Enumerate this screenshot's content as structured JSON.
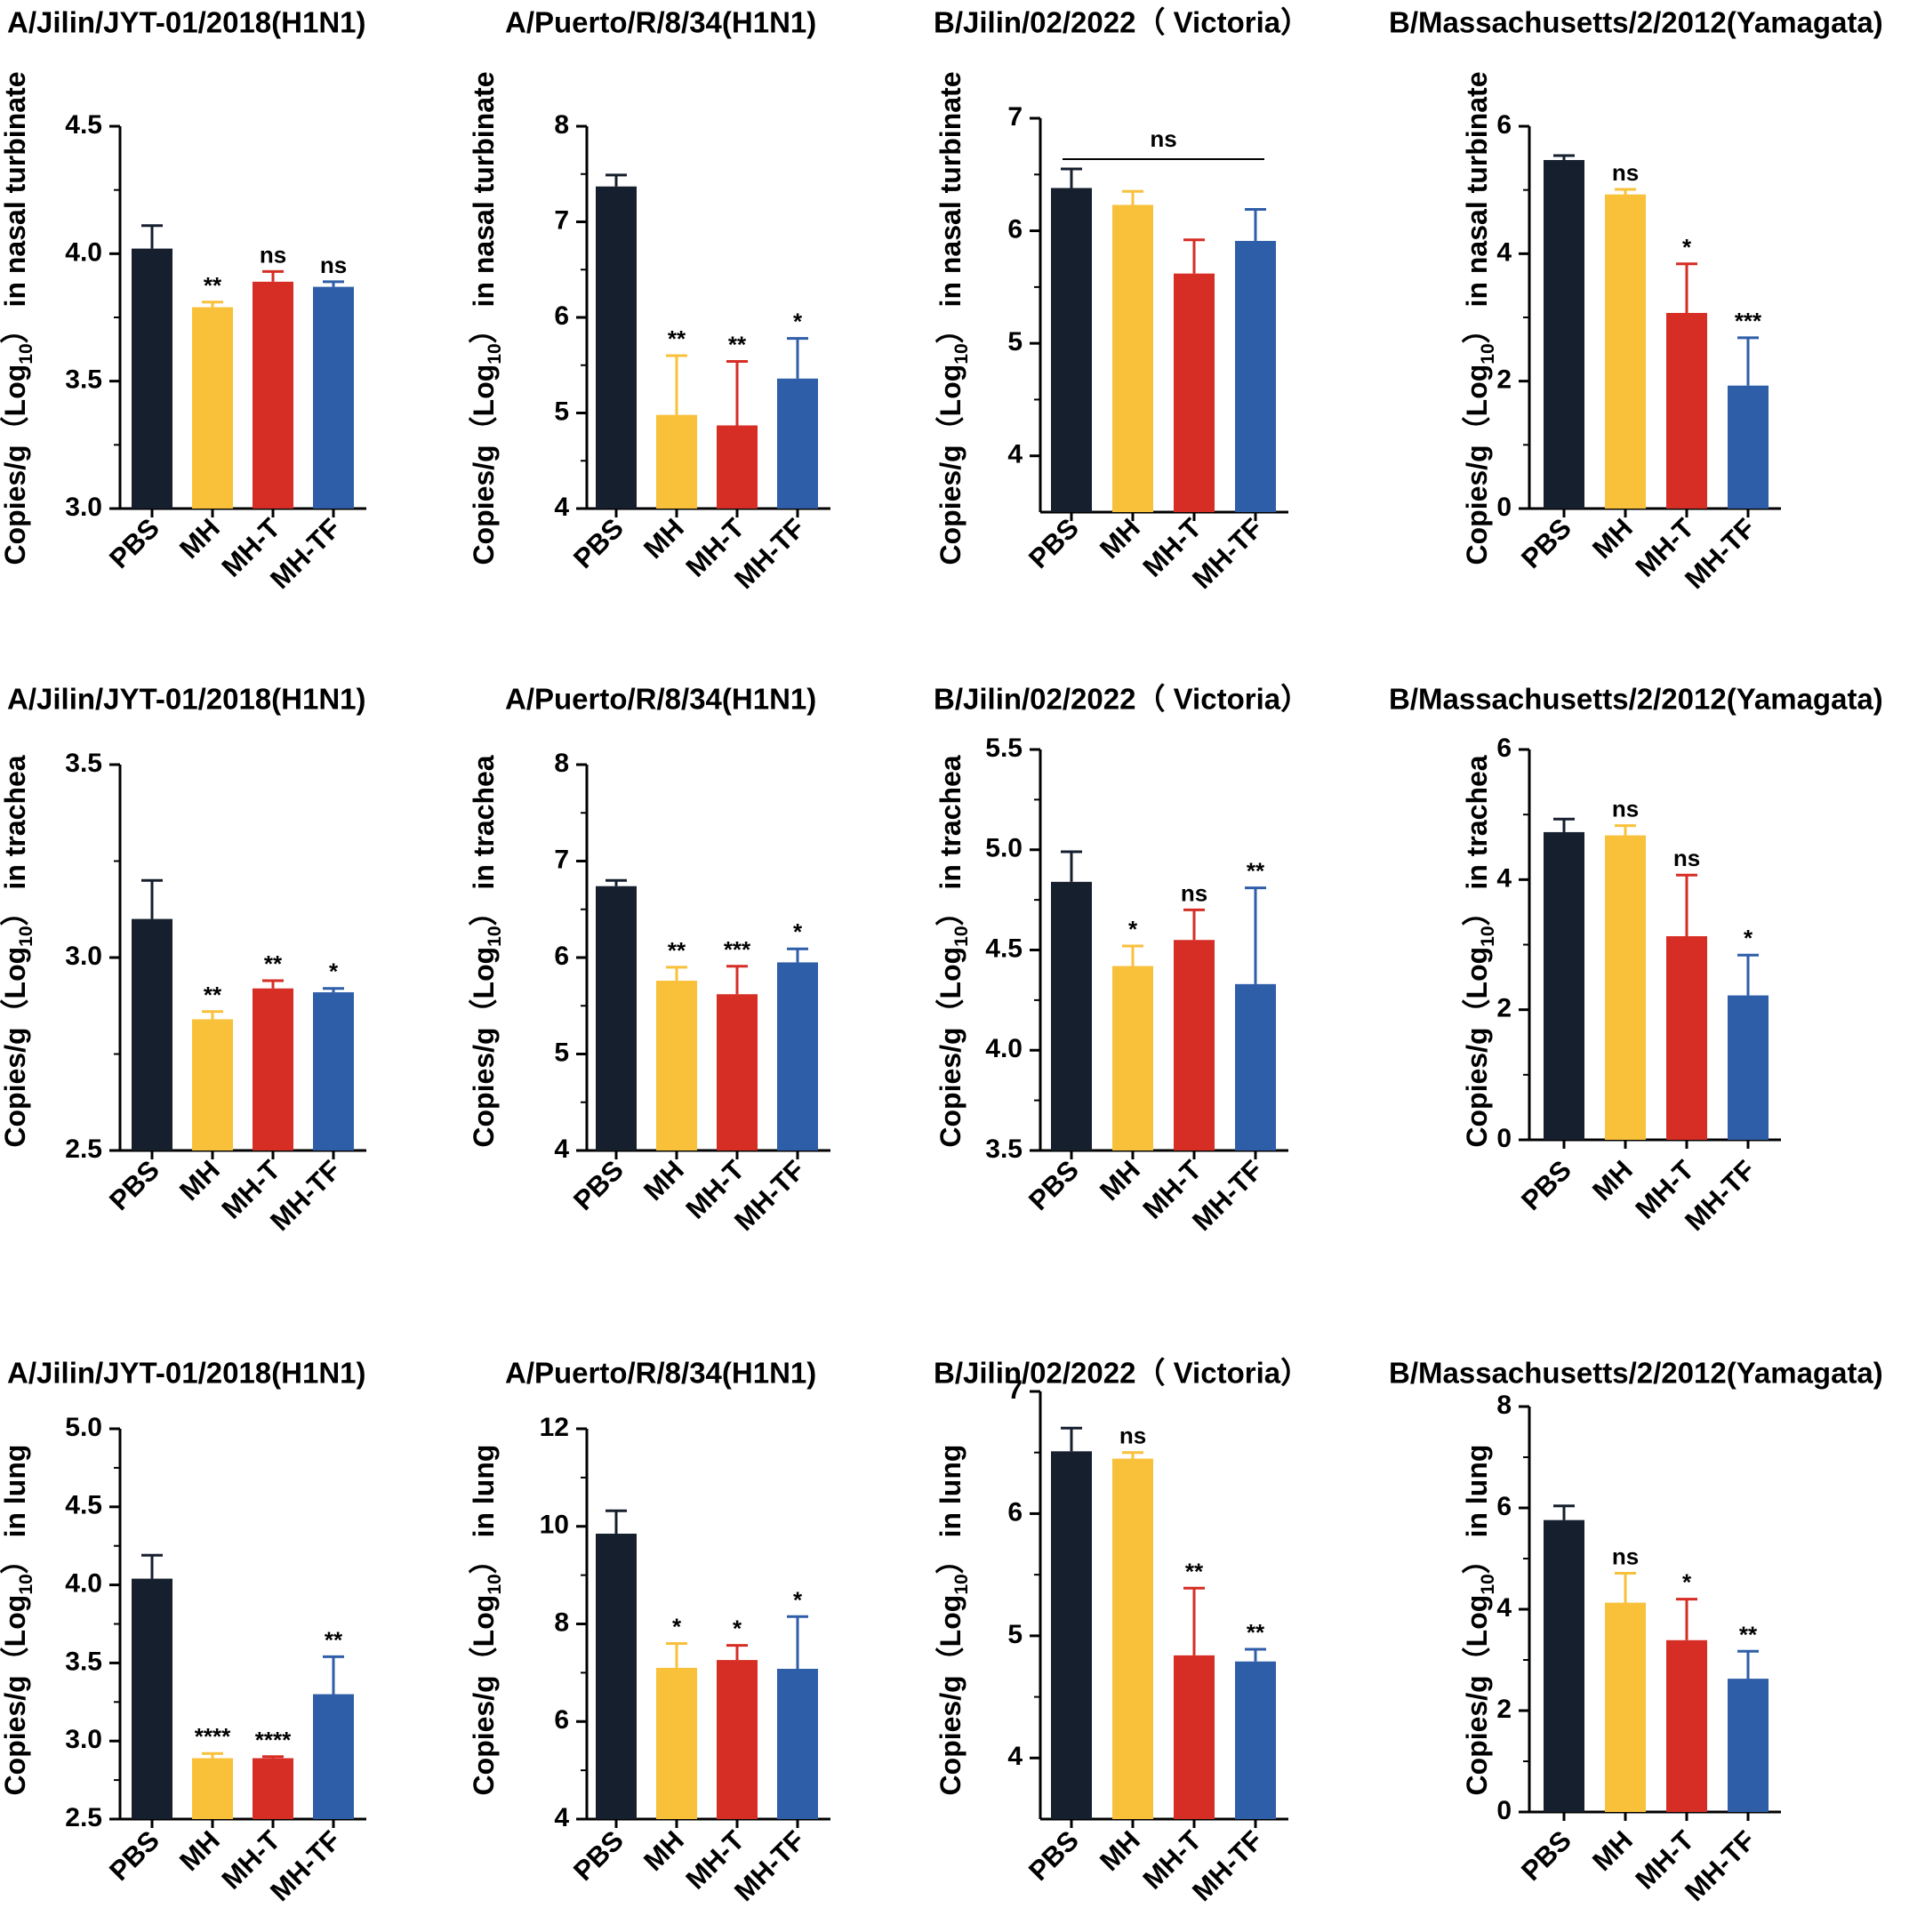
{
  "figure": {
    "categories": [
      "PBS",
      "MH",
      "MH-T",
      "MH-TF"
    ],
    "colors": [
      "#161f2e",
      "#f9c03a",
      "#d62d24",
      "#2f5ea8"
    ],
    "rows": [
      {
        "ylabel": "Copies/g（Log10） in nasal turbinate",
        "ylabel_prefix": "Copies/g（Log",
        "ylabel_sub": "10",
        "ylabel_suffix": "） in nasal turbinate"
      },
      {
        "ylabel": "Copies/g（Log10） in trachea",
        "ylabel_prefix": "Copies/g（Log",
        "ylabel_sub": "10",
        "ylabel_suffix": "） in trachea"
      },
      {
        "ylabel": "Copies/g（Log10） in lung",
        "ylabel_prefix": "Copies/g（Log",
        "ylabel_sub": "10",
        "ylabel_suffix": "） in lung"
      }
    ]
  },
  "chart_data": [
    {
      "type": "bar",
      "row": 0,
      "col": 0,
      "title": "A/Jilin/JYT-01/2018(H1N1)",
      "categories": [
        "PBS",
        "MH",
        "MH-T",
        "MH-TF"
      ],
      "values": [
        4.02,
        3.79,
        3.89,
        3.87
      ],
      "errors": [
        0.09,
        0.02,
        0.04,
        0.02
      ],
      "significance": [
        "",
        "**",
        "ns",
        "ns"
      ],
      "ylim": [
        3.0,
        4.5
      ],
      "yticks": [
        "3.0",
        "3.5",
        "4.0",
        "4.5"
      ],
      "ylabel": "Copies/g（Log10） in nasal turbinate"
    },
    {
      "type": "bar",
      "row": 0,
      "col": 1,
      "title": "A/Puerto/R/8/34(H1N1)",
      "categories": [
        "PBS",
        "MH",
        "MH-T",
        "MH-TF"
      ],
      "values": [
        7.37,
        4.98,
        4.87,
        5.36
      ],
      "errors": [
        0.12,
        0.62,
        0.67,
        0.42
      ],
      "significance": [
        "",
        "**",
        "**",
        "*"
      ],
      "ylim": [
        4,
        8
      ],
      "yticks": [
        "4",
        "5",
        "6",
        "7",
        "8"
      ],
      "ylabel": "Copies/g（Log10） in nasal turbinate"
    },
    {
      "type": "bar",
      "row": 0,
      "col": 2,
      "title": "B/Jilin/02/2022（ Victoria）",
      "categories": [
        "PBS",
        "MH",
        "MH-T",
        "MH-TF"
      ],
      "values": [
        6.38,
        6.23,
        5.62,
        5.91
      ],
      "errors": [
        0.17,
        0.12,
        0.3,
        0.28
      ],
      "significance": [
        "",
        "",
        "",
        ""
      ],
      "bracket_label": "ns",
      "ylim": [
        3.5,
        7
      ],
      "yticks": [
        "4",
        "5",
        "6",
        "7"
      ],
      "ylabel": "Copies/g（Log10） in nasal turbinate"
    },
    {
      "type": "bar",
      "row": 0,
      "col": 3,
      "title": "B/Massachusetts/2/2012(Yamagata)",
      "categories": [
        "PBS",
        "MH",
        "MH-T",
        "MH-TF"
      ],
      "values": [
        5.47,
        4.93,
        3.07,
        1.93
      ],
      "errors": [
        0.07,
        0.08,
        0.77,
        0.75
      ],
      "significance": [
        "",
        "ns",
        "*",
        "***"
      ],
      "ylim": [
        0,
        6
      ],
      "yticks": [
        "0",
        "2",
        "4",
        "6"
      ],
      "ylabel": "Copies/g（Log10） in nasal turbinate"
    },
    {
      "type": "bar",
      "row": 1,
      "col": 0,
      "title": "A/Jilin/JYT-01/2018(H1N1)",
      "categories": [
        "PBS",
        "MH",
        "MH-T",
        "MH-TF"
      ],
      "values": [
        3.1,
        2.84,
        2.92,
        2.91
      ],
      "errors": [
        0.1,
        0.02,
        0.02,
        0.01
      ],
      "significance": [
        "",
        "**",
        "**",
        "*"
      ],
      "ylim": [
        2.5,
        3.5
      ],
      "yticks": [
        "2.5",
        "3.0",
        "3.5"
      ],
      "ylabel": "Copies/g（Log10） in trachea"
    },
    {
      "type": "bar",
      "row": 1,
      "col": 1,
      "title": "A/Puerto/R/8/34(H1N1)",
      "categories": [
        "PBS",
        "MH",
        "MH-T",
        "MH-TF"
      ],
      "values": [
        6.74,
        5.76,
        5.62,
        5.95
      ],
      "errors": [
        0.06,
        0.14,
        0.29,
        0.14
      ],
      "significance": [
        "",
        "**",
        "***",
        "*"
      ],
      "ylim": [
        4,
        8
      ],
      "yticks": [
        "4",
        "5",
        "6",
        "7",
        "8"
      ],
      "ylabel": "Copies/g（Log10） in trachea"
    },
    {
      "type": "bar",
      "row": 1,
      "col": 2,
      "title": "B/Jilin/02/2022（ Victoria）",
      "categories": [
        "PBS",
        "MH",
        "MH-T",
        "MH-TF"
      ],
      "values": [
        4.84,
        4.42,
        4.55,
        4.33
      ],
      "errors": [
        0.15,
        0.1,
        0.15,
        0.48
      ],
      "significance": [
        "",
        "*",
        "ns",
        "**"
      ],
      "ylim": [
        3.5,
        5.5
      ],
      "yticks": [
        "3.5",
        "4.0",
        "4.5",
        "5.0",
        "5.5"
      ],
      "ylabel": "Copies/g（Log10） in trachea"
    },
    {
      "type": "bar",
      "row": 1,
      "col": 3,
      "title": "B/Massachusetts/2/2012(Yamagata)",
      "categories": [
        "PBS",
        "MH",
        "MH-T",
        "MH-TF"
      ],
      "values": [
        4.73,
        4.68,
        3.13,
        2.22
      ],
      "errors": [
        0.2,
        0.15,
        0.94,
        0.62
      ],
      "significance": [
        "",
        "ns",
        "ns",
        "*"
      ],
      "ylim": [
        0,
        6
      ],
      "yticks": [
        "0",
        "2",
        "4",
        "6"
      ],
      "ylabel": "Copies/g（Log10） in trachea"
    },
    {
      "type": "bar",
      "row": 2,
      "col": 0,
      "title": "A/Jilin/JYT-01/2018(H1N1)",
      "categories": [
        "PBS",
        "MH",
        "MH-T",
        "MH-TF"
      ],
      "values": [
        4.04,
        2.89,
        2.89,
        3.3
      ],
      "errors": [
        0.15,
        0.03,
        0.01,
        0.24
      ],
      "significance": [
        "",
        "****",
        "****",
        "**"
      ],
      "ylim": [
        2.5,
        5.0
      ],
      "yticks": [
        "2.5",
        "3.0",
        "3.5",
        "4.0",
        "4.5",
        "5.0"
      ],
      "ylabel": "Copies/g（Log10） in lung"
    },
    {
      "type": "bar",
      "row": 2,
      "col": 1,
      "title": "A/Puerto/R/8/34(H1N1)",
      "categories": [
        "PBS",
        "MH",
        "MH-T",
        "MH-TF"
      ],
      "values": [
        9.85,
        7.1,
        7.26,
        7.08
      ],
      "errors": [
        0.47,
        0.5,
        0.3,
        1.07
      ],
      "significance": [
        "",
        "*",
        "*",
        "*"
      ],
      "ylim": [
        4,
        12
      ],
      "yticks": [
        "4",
        "6",
        "8",
        "10",
        "12"
      ],
      "ylabel": "Copies/g（Log10） in lung"
    },
    {
      "type": "bar",
      "row": 2,
      "col": 2,
      "title": "B/Jilin/02/2022（ Victoria）",
      "categories": [
        "PBS",
        "MH",
        "MH-T",
        "MH-TF"
      ],
      "values": [
        6.51,
        6.45,
        4.84,
        4.79
      ],
      "errors": [
        0.19,
        0.05,
        0.55,
        0.1
      ],
      "significance": [
        "",
        "ns",
        "**",
        "**"
      ],
      "ylim": [
        3.5,
        7
      ],
      "yticks": [
        "4",
        "5",
        "6",
        "7"
      ],
      "ylabel": "Copies/g（Log10） in lung"
    },
    {
      "type": "bar",
      "row": 2,
      "col": 3,
      "title": "B/Massachusetts/2/2012(Yamagata)",
      "categories": [
        "PBS",
        "MH",
        "MH-T",
        "MH-TF"
      ],
      "values": [
        5.76,
        4.13,
        3.39,
        2.63
      ],
      "errors": [
        0.28,
        0.58,
        0.81,
        0.54
      ],
      "significance": [
        "",
        "ns",
        "*",
        "**"
      ],
      "ylim": [
        0,
        8
      ],
      "yticks": [
        "0",
        "2",
        "4",
        "6",
        "8"
      ],
      "ylabel": "Copies/g（Log10） in lung"
    }
  ]
}
